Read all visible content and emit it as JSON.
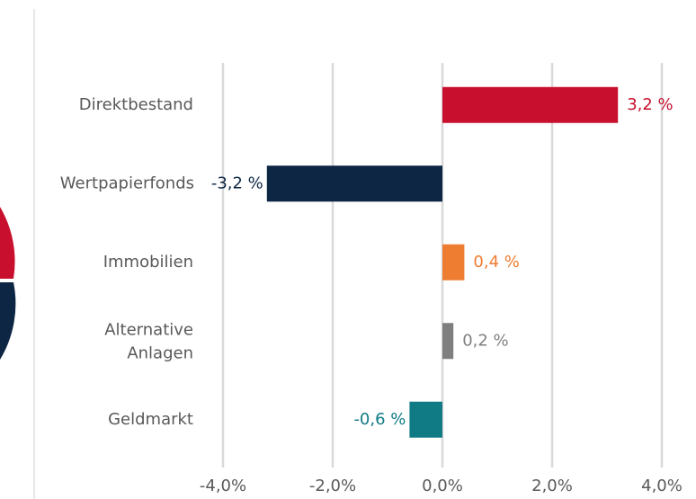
{
  "chart_data": {
    "type": "bar",
    "orientation": "horizontal",
    "categories": [
      "Direktbestand",
      "Wertpapierfonds",
      "Immobilien",
      "Alternative Anlagen",
      "Geldmarkt"
    ],
    "values": [
      3.2,
      -3.2,
      0.4,
      0.2,
      -0.6
    ],
    "value_labels": [
      "3,2 %",
      "-3,2 %",
      "0,4 %",
      "0,2 %",
      "-0,6 %"
    ],
    "colors": [
      "#c8102e",
      "#0d2644",
      "#ee7d31",
      "#7f7f7f",
      "#107a85"
    ],
    "xlim": [
      -4,
      4
    ],
    "xticks": [
      {
        "value": -4,
        "label": "-4,0%"
      },
      {
        "value": -2,
        "label": "-2,0%"
      },
      {
        "value": 0,
        "label": "0,0%"
      },
      {
        "value": 2,
        "label": "2,0%"
      },
      {
        "value": 4,
        "label": "4,0%"
      }
    ],
    "grid": true
  }
}
